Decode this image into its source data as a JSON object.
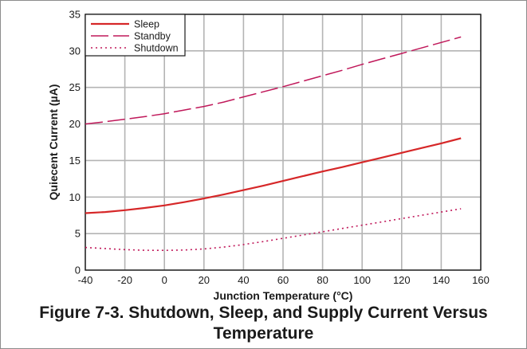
{
  "chart_data": {
    "type": "line",
    "xlabel": "Junction Temperature (°C)",
    "ylabel": "Quiecent Current (µA)",
    "xlim": [
      -40,
      160
    ],
    "ylim": [
      0,
      35
    ],
    "xticks": [
      -40,
      -20,
      0,
      20,
      40,
      60,
      80,
      100,
      120,
      140,
      160
    ],
    "yticks": [
      0,
      5,
      10,
      15,
      20,
      25,
      30,
      35
    ],
    "grid": true,
    "legend_position": "top-left",
    "series": [
      {
        "name": "Sleep",
        "color": "#d62728",
        "style": "solid",
        "x": [
          -40,
          -30,
          -20,
          -10,
          0,
          10,
          20,
          30,
          40,
          50,
          60,
          70,
          80,
          90,
          100,
          110,
          120,
          130,
          140,
          150
        ],
        "y": [
          7.8,
          7.95,
          8.2,
          8.5,
          8.85,
          9.3,
          9.8,
          10.35,
          10.95,
          11.55,
          12.2,
          12.85,
          13.5,
          14.1,
          14.75,
          15.4,
          16.05,
          16.7,
          17.35,
          18.05
        ]
      },
      {
        "name": "Standby",
        "color": "#c0185a",
        "style": "dashed",
        "x": [
          -40,
          -30,
          -20,
          -10,
          0,
          10,
          20,
          30,
          40,
          50,
          60,
          70,
          80,
          90,
          100,
          110,
          120,
          130,
          140,
          150
        ],
        "y": [
          20.0,
          20.3,
          20.65,
          21.0,
          21.4,
          21.9,
          22.4,
          23.0,
          23.7,
          24.4,
          25.1,
          25.85,
          26.6,
          27.35,
          28.15,
          28.9,
          29.65,
          30.4,
          31.15,
          31.9
        ]
      },
      {
        "name": "Shutdown",
        "color": "#c0185a",
        "style": "dotted",
        "x": [
          -40,
          -30,
          -20,
          -10,
          0,
          10,
          20,
          30,
          40,
          50,
          60,
          70,
          80,
          90,
          100,
          110,
          120,
          130,
          140,
          150
        ],
        "y": [
          3.1,
          2.95,
          2.8,
          2.72,
          2.7,
          2.75,
          2.9,
          3.15,
          3.5,
          3.9,
          4.35,
          4.8,
          5.25,
          5.7,
          6.15,
          6.6,
          7.05,
          7.5,
          7.95,
          8.4
        ]
      }
    ]
  },
  "caption": {
    "line1": "Figure 7-3. Shutdown, Sleep, and Supply Current Versus",
    "line2": "Temperature"
  }
}
